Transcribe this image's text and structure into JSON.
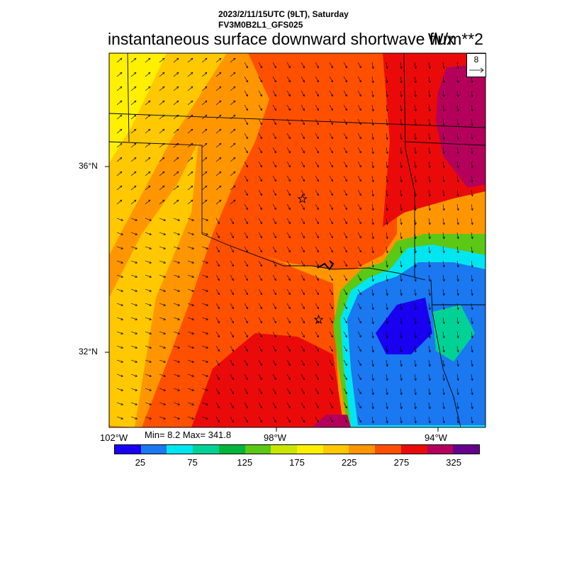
{
  "header": {
    "datetime": "2023/2/11/15UTC (9LT), Saturday",
    "model": "FV3M0B2L1_GFS025",
    "title": "instantaneous surface downward shortwave flux",
    "units": "W/m**2"
  },
  "vector_reference": {
    "value": "8"
  },
  "axes": {
    "lat_labels": [
      {
        "text": "36°N",
        "value": 36
      },
      {
        "text": "32°N",
        "value": 32
      }
    ],
    "lon_labels": [
      {
        "text": "102°W",
        "value": -102
      },
      {
        "text": "98°W",
        "value": -98
      },
      {
        "text": "94°W",
        "value": -94
      }
    ]
  },
  "stats": {
    "minmax": "Min= 8.2 Max= 341.8"
  },
  "colorbar": {
    "colors": [
      "#1a00f0",
      "#1a78f0",
      "#00e6f0",
      "#00d296",
      "#00b43c",
      "#5ac814",
      "#c8e600",
      "#fff000",
      "#ffc800",
      "#ff9600",
      "#ff5000",
      "#eb0a0a",
      "#b4005a",
      "#64008c"
    ],
    "labels": [
      "25",
      "75",
      "125",
      "175",
      "225",
      "275",
      "325"
    ]
  },
  "markers": [
    {
      "name": "star-marker-1",
      "lon": -97.5,
      "lat": 35.3
    },
    {
      "name": "star-marker-2",
      "lon": -97.1,
      "lat": 32.7
    }
  ]
}
